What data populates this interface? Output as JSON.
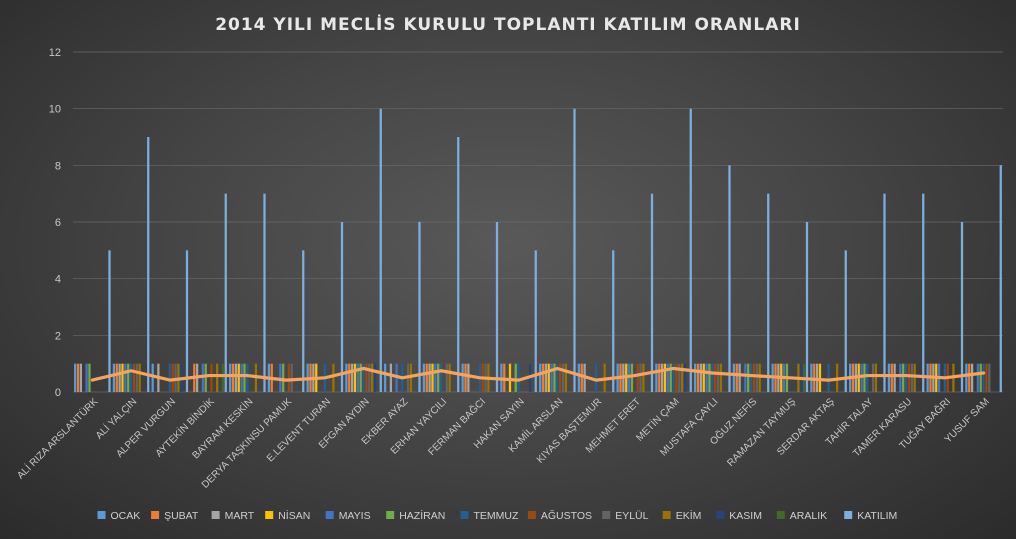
{
  "chart_data": {
    "type": "bar",
    "title": "2014 YILI MECLİS KURULU TOPLANTI KATILIM ORANLARI",
    "ylim": [
      0,
      12
    ],
    "yticks": [
      0,
      2,
      4,
      6,
      8,
      10,
      12
    ],
    "grid": true,
    "legend_position": "bottom",
    "categories": [
      "ALİ RIZA ARSLANTÜRK",
      "ALİ YALÇIN",
      "ALPER VURGUN",
      "AYTEKİN BİNDİK",
      "BAYRAM KESKİN",
      "DERYA TAŞKINSU PAMUK",
      "E.LEVENT TURAN",
      "EFGAN AYDIN",
      "EKBER AYAZ",
      "ERHAN YAYCILI",
      "FERMAN BAĞCI",
      "HAKAN SAYIN",
      "KAMİL ARSLAN",
      "KIYAS BAŞTEMUR",
      "MEHMET ERET",
      "METİN ÇAM",
      "MUSTAFA ÇAYLI",
      "OĞUZ NEFİS",
      "RAMAZAN TAYMUŞ",
      "SERDAR AKTAŞ",
      "TAHİR TALAY",
      "TAMER KARASU",
      "TUĞAY BAĞRI",
      "YUSUF SAM"
    ],
    "series": [
      {
        "name": "OCAK",
        "color": "#5b9bd5",
        "values": [
          1,
          1,
          1,
          0,
          1,
          1,
          1,
          1,
          1,
          1,
          1,
          1,
          1,
          1,
          1,
          1,
          1,
          1,
          1,
          1,
          1,
          1,
          1,
          1
        ]
      },
      {
        "name": "ŞUBAT",
        "color": "#ed7d31",
        "values": [
          1,
          1,
          0,
          1,
          1,
          1,
          1,
          1,
          0,
          1,
          1,
          1,
          1,
          1,
          1,
          1,
          1,
          1,
          1,
          1,
          1,
          1,
          1,
          1
        ]
      },
      {
        "name": "MART",
        "color": "#a5a5a5",
        "values": [
          1,
          1,
          1,
          1,
          1,
          0,
          1,
          1,
          1,
          1,
          1,
          0,
          1,
          1,
          1,
          1,
          1,
          1,
          1,
          1,
          1,
          1,
          1,
          1
        ]
      },
      {
        "name": "NİSAN",
        "color": "#ffc000",
        "values": [
          0,
          1,
          0,
          0,
          1,
          0,
          1,
          1,
          0,
          1,
          0,
          1,
          1,
          0,
          1,
          1,
          1,
          0,
          1,
          1,
          1,
          0,
          1,
          0
        ]
      },
      {
        "name": "MAYIS",
        "color": "#4472c4",
        "values": [
          1,
          1,
          0,
          1,
          1,
          1,
          0,
          1,
          1,
          1,
          0,
          0,
          1,
          0,
          1,
          1,
          1,
          1,
          1,
          0,
          1,
          1,
          1,
          1
        ]
      },
      {
        "name": "HAZİRAN",
        "color": "#70ad47",
        "values": [
          1,
          1,
          0,
          1,
          1,
          1,
          0,
          1,
          0,
          1,
          0,
          1,
          1,
          0,
          1,
          1,
          1,
          1,
          1,
          0,
          1,
          1,
          0,
          1
        ]
      },
      {
        "name": "TEMMUZ",
        "color": "#255e91",
        "values": [
          0,
          1,
          1,
          0,
          1,
          0,
          1,
          1,
          1,
          1,
          1,
          1,
          1,
          1,
          0,
          1,
          1,
          1,
          0,
          1,
          1,
          1,
          1,
          1
        ]
      },
      {
        "name": "AĞUSTOS",
        "color": "#9e480e",
        "values": [
          0,
          1,
          1,
          1,
          0,
          1,
          0,
          1,
          0,
          0,
          1,
          0,
          1,
          0,
          1,
          1,
          1,
          1,
          0,
          0,
          0,
          1,
          1,
          1
        ]
      },
      {
        "name": "EYLÜL",
        "color": "#636363",
        "values": [
          0,
          1,
          1,
          0,
          0,
          1,
          0,
          1,
          1,
          1,
          1,
          0,
          1,
          0,
          1,
          1,
          1,
          1,
          0,
          0,
          1,
          1,
          0,
          1
        ]
      },
      {
        "name": "EKİM",
        "color": "#997300",
        "values": [
          0,
          1,
          1,
          1,
          1,
          0,
          1,
          1,
          1,
          1,
          1,
          0,
          1,
          1,
          1,
          1,
          1,
          1,
          1,
          1,
          1,
          1,
          1,
          0
        ]
      },
      {
        "name": "KASIM",
        "color": "#264478",
        "values": [
          0,
          0,
          1,
          0,
          0,
          0,
          0,
          1,
          0,
          0,
          0,
          1,
          0,
          0,
          0,
          1,
          0,
          0,
          1,
          0,
          0,
          0,
          0,
          0
        ]
      },
      {
        "name": "ARALIK",
        "color": "#43682b",
        "values": [
          0,
          0,
          0,
          1,
          0,
          0,
          0,
          0,
          0,
          0,
          0,
          0,
          0,
          0,
          0,
          0,
          0,
          0,
          1,
          0,
          0,
          0,
          0,
          0
        ]
      },
      {
        "name": "KATILIM",
        "color": "#7cafdd",
        "values": [
          5,
          9,
          5,
          7,
          7,
          5,
          6,
          10,
          6,
          9,
          6,
          5,
          10,
          5,
          7,
          10,
          8,
          7,
          6,
          5,
          7,
          7,
          6,
          8
        ]
      }
    ],
    "line_series": {
      "name": "KATILIM",
      "color": "#f4a460",
      "values": [
        0.42,
        0.75,
        0.42,
        0.58,
        0.58,
        0.42,
        0.5,
        0.83,
        0.5,
        0.75,
        0.5,
        0.42,
        0.83,
        0.42,
        0.58,
        0.83,
        0.67,
        0.58,
        0.5,
        0.42,
        0.58,
        0.58,
        0.5,
        0.67
      ]
    }
  }
}
